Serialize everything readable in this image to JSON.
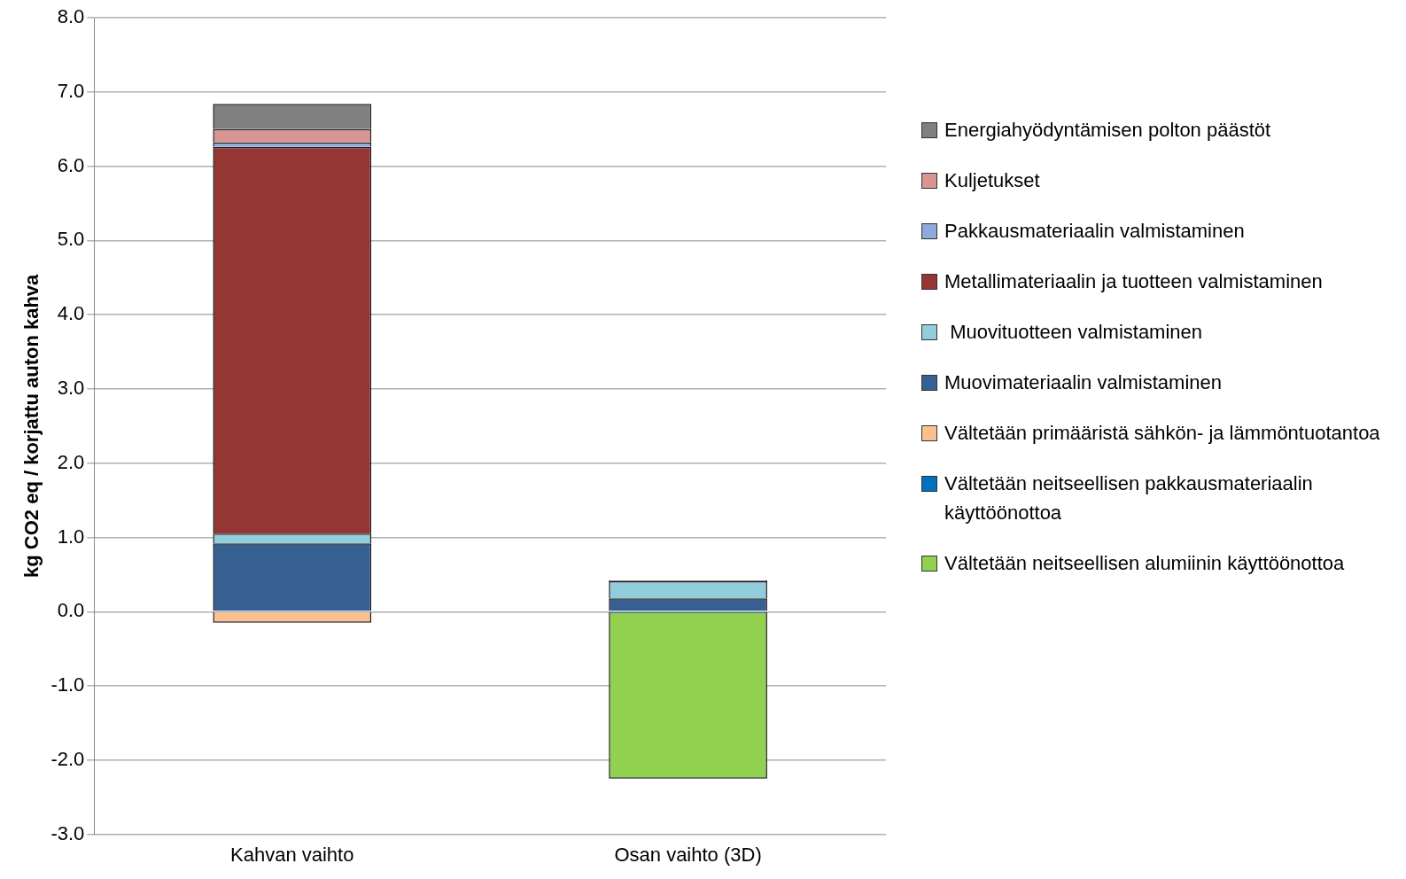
{
  "chart_data": {
    "type": "bar",
    "stacked": true,
    "ylabel": "kg CO2 eq / korjattu auton kahva",
    "categories": [
      "Kahvan vaihto",
      "Osan vaihto (3D)"
    ],
    "series": [
      {
        "name": "Muovimateriaalin valmistaminen",
        "color": "#366092",
        "values": [
          0.92,
          0.18
        ]
      },
      {
        "name": " Muovituotteen valmistaminen",
        "color": "#92cddc",
        "values": [
          0.13,
          0.23
        ]
      },
      {
        "name": "Metallimateriaalin ja tuotteen valmistaminen",
        "color": "#943634",
        "values": [
          5.21,
          null
        ]
      },
      {
        "name": "Pakkausmateriaalin valmistaminen",
        "color": "#8ea9db",
        "values": [
          0.06,
          null
        ]
      },
      {
        "name": "Kuljetukset",
        "color": "#d99594",
        "values": [
          0.18,
          null
        ]
      },
      {
        "name": "Energiahyödyntämisen polton päästöt",
        "color": "#808080",
        "values": [
          0.34,
          0.01
        ]
      },
      {
        "name": "Vältetään primääristä sähkön- ja lämmöntuotantoa",
        "color": "#fac090",
        "values": [
          -0.15,
          null
        ]
      },
      {
        "name": "Vältetään neitseellisen pakkausmateriaalin käyttöönottoa",
        "color": "#0070c0",
        "values": [
          null,
          -0.02
        ]
      },
      {
        "name": "Vältetään neitseellisen alumiinin käyttöönottoa",
        "color": "#92d050",
        "values": [
          null,
          -2.23
        ]
      }
    ],
    "ylim": [
      -3,
      8
    ],
    "yticks": [
      {
        "value": -3,
        "label": "-3.0"
      },
      {
        "value": -2,
        "label": "-2.0"
      },
      {
        "value": -1,
        "label": "-1.0"
      },
      {
        "value": 0,
        "label": "0.0"
      },
      {
        "value": 1,
        "label": "1.0"
      },
      {
        "value": 2,
        "label": "2.0"
      },
      {
        "value": 3,
        "label": "3.0"
      },
      {
        "value": 4,
        "label": "4.0"
      },
      {
        "value": 5,
        "label": "5.0"
      },
      {
        "value": 6,
        "label": "6.0"
      },
      {
        "value": 7,
        "label": "7.0"
      },
      {
        "value": 8,
        "label": "8.0"
      }
    ],
    "grid": "y",
    "legend": "right"
  }
}
